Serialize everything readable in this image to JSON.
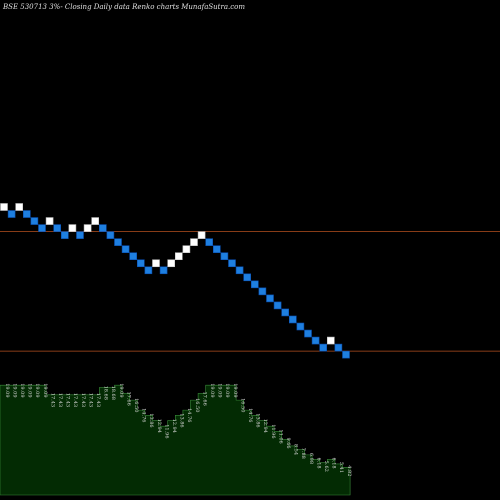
{
  "header": {
    "title": "BSE 530713 3%-  Closing Daily data  Renko  charts MunafaSutra.com"
  },
  "colors": {
    "background": "#000000",
    "up_brick": "#ffffff",
    "down_brick": "#1e7fe0",
    "down_brick_border": "#0a4fb0",
    "ref_line": "#b5501f",
    "lower_area_fill": "#032b03",
    "lower_area_line": "#3a8a3a"
  },
  "chart_data": {
    "type": "renko",
    "title": "BSE 530713 3%-  Closing Daily data  Renko  charts MunafaSutra.com",
    "bricks": [
      {
        "dir": "up",
        "level": 0
      },
      {
        "dir": "down",
        "level": 1
      },
      {
        "dir": "up",
        "level": 0
      },
      {
        "dir": "down",
        "level": 1
      },
      {
        "dir": "down",
        "level": 2
      },
      {
        "dir": "down",
        "level": 3
      },
      {
        "dir": "up",
        "level": 2
      },
      {
        "dir": "down",
        "level": 3
      },
      {
        "dir": "down",
        "level": 4
      },
      {
        "dir": "up",
        "level": 3
      },
      {
        "dir": "down",
        "level": 4
      },
      {
        "dir": "up",
        "level": 3
      },
      {
        "dir": "up",
        "level": 2
      },
      {
        "dir": "down",
        "level": 3
      },
      {
        "dir": "down",
        "level": 4
      },
      {
        "dir": "down",
        "level": 5
      },
      {
        "dir": "down",
        "level": 6
      },
      {
        "dir": "down",
        "level": 7
      },
      {
        "dir": "down",
        "level": 8
      },
      {
        "dir": "down",
        "level": 9
      },
      {
        "dir": "up",
        "level": 8
      },
      {
        "dir": "down",
        "level": 9
      },
      {
        "dir": "up",
        "level": 8
      },
      {
        "dir": "up",
        "level": 7
      },
      {
        "dir": "up",
        "level": 6
      },
      {
        "dir": "up",
        "level": 5
      },
      {
        "dir": "up",
        "level": 4
      },
      {
        "dir": "down",
        "level": 5
      },
      {
        "dir": "down",
        "level": 6
      },
      {
        "dir": "down",
        "level": 7
      },
      {
        "dir": "down",
        "level": 8
      },
      {
        "dir": "down",
        "level": 9
      },
      {
        "dir": "down",
        "level": 10
      },
      {
        "dir": "down",
        "level": 11
      },
      {
        "dir": "down",
        "level": 12
      },
      {
        "dir": "down",
        "level": 13
      },
      {
        "dir": "down",
        "level": 14
      },
      {
        "dir": "down",
        "level": 15
      },
      {
        "dir": "down",
        "level": 16
      },
      {
        "dir": "down",
        "level": 17
      },
      {
        "dir": "down",
        "level": 18
      },
      {
        "dir": "down",
        "level": 19
      },
      {
        "dir": "down",
        "level": 20
      },
      {
        "dir": "up",
        "level": 19
      },
      {
        "dir": "down",
        "level": 20
      },
      {
        "dir": "down",
        "level": 21
      }
    ],
    "reference_lines": [
      {
        "level": 3.5
      },
      {
        "level": 20.5
      }
    ],
    "lower_panel": {
      "values": [
        19.09,
        19.09,
        19.09,
        19.09,
        19.09,
        19.09,
        17.43,
        17.43,
        17.43,
        17.43,
        17.43,
        17.43,
        17.43,
        18.68,
        18.68,
        19.09,
        17.66,
        16.5,
        14.76,
        13.86,
        12.94,
        11.96,
        12.94,
        13.86,
        14.76,
        16.5,
        17.66,
        19.09,
        19.09,
        19.09,
        19.09,
        16.5,
        14.76,
        13.86,
        12.94,
        11.96,
        11.06,
        9.66,
        8.54,
        7.88,
        6.98,
        6.18,
        5.62,
        6.18,
        5.41,
        4.82
      ],
      "labels": [
        "19.09",
        "19.09",
        "19.09",
        "19.09",
        "19.09",
        "19.09",
        "17.43",
        "17.43",
        "17.43",
        "17.43",
        "17.43",
        "17.43",
        "17.43",
        "18.68",
        "18.68",
        "19.09",
        "17.66",
        "16.50",
        "14.76",
        "13.86",
        "12.94",
        "11.96",
        "12.94",
        "13.86",
        "14.76",
        "16.50",
        "17.66",
        "19.09",
        "19.09",
        "19.09",
        "19.09",
        "16.50",
        "14.76",
        "13.86",
        "12.94",
        "11.96",
        "11.06",
        "9.66",
        "8.54",
        "7.88",
        "6.98",
        "6.18",
        "5.62",
        "6.18",
        "5.41",
        "4.82"
      ],
      "ylim": [
        0,
        20
      ]
    }
  }
}
